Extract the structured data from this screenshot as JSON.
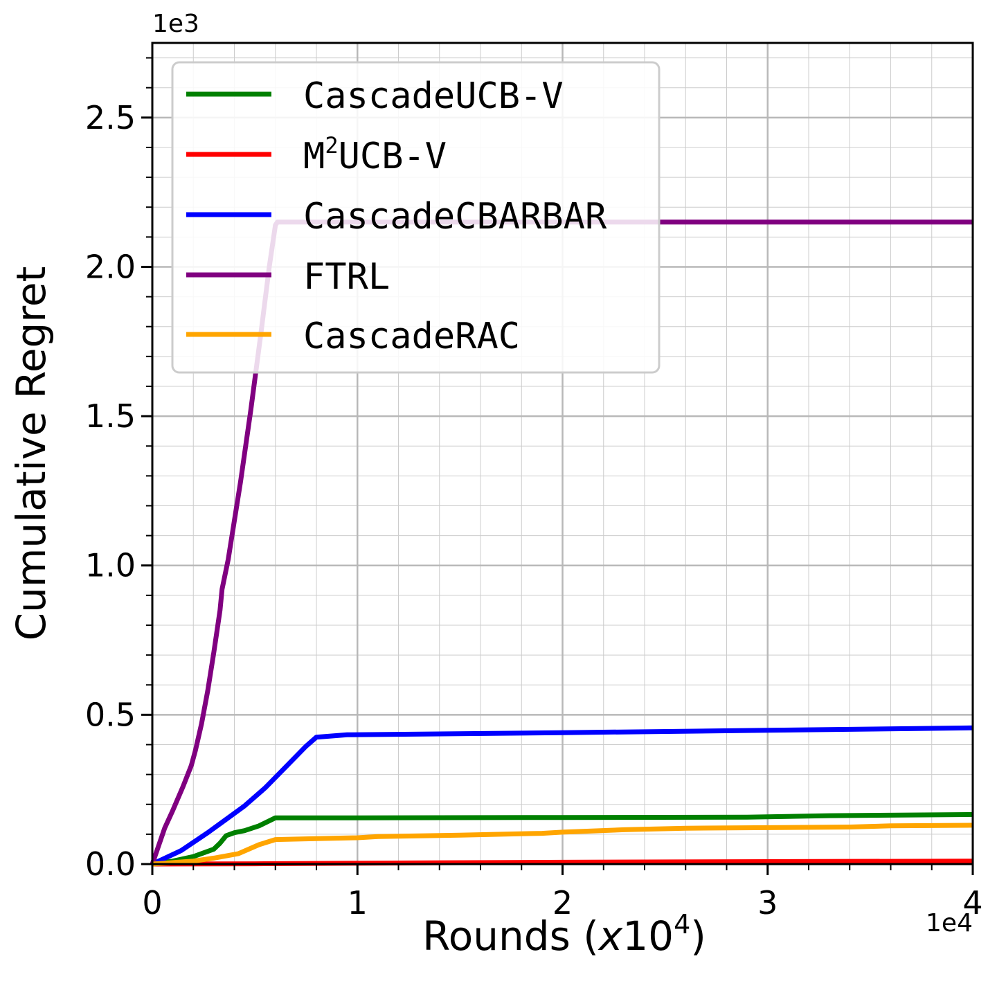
{
  "chart_data": {
    "type": "line",
    "xlabel": {
      "prefix": "Rounds (",
      "var": "x",
      "base": "10",
      "exp": "4",
      "suffix": ")"
    },
    "ylabel": "Cumulative Regret",
    "x_offset_label": "1e4",
    "y_offset_label": "1e3",
    "xlim": [
      0,
      40000
    ],
    "ylim": [
      0,
      2750
    ],
    "x_ticks": [
      {
        "value": 0,
        "label": "0"
      },
      {
        "value": 10000,
        "label": "1"
      },
      {
        "value": 20000,
        "label": "2"
      },
      {
        "value": 30000,
        "label": "3"
      },
      {
        "value": 40000,
        "label": "4"
      }
    ],
    "y_ticks": [
      {
        "value": 0,
        "label": "0.0"
      },
      {
        "value": 500,
        "label": "0.5"
      },
      {
        "value": 1000,
        "label": "1.0"
      },
      {
        "value": 1500,
        "label": "1.5"
      },
      {
        "value": 2000,
        "label": "2.0"
      },
      {
        "value": 2500,
        "label": "2.5"
      }
    ],
    "grid": true,
    "legend_position": "top-left",
    "series": [
      {
        "key": "cascadeucbv",
        "name": "CascadeUCB-V",
        "color": "#008000",
        "points": [
          [
            0,
            0
          ],
          [
            1000,
            10
          ],
          [
            2000,
            25
          ],
          [
            3000,
            50
          ],
          [
            3300,
            70
          ],
          [
            3600,
            95
          ],
          [
            4000,
            105
          ],
          [
            4500,
            112
          ],
          [
            5200,
            128
          ],
          [
            6000,
            155
          ],
          [
            10000,
            155
          ],
          [
            20000,
            156
          ],
          [
            29000,
            157
          ],
          [
            33000,
            162
          ],
          [
            40000,
            166
          ]
        ]
      },
      {
        "key": "m2ucbv",
        "name_main": "M",
        "name_sup": "2",
        "name_rest": "UCB-V",
        "color": "#ff0000",
        "points": [
          [
            0,
            0
          ],
          [
            5000,
            1
          ],
          [
            10000,
            3
          ],
          [
            20000,
            6
          ],
          [
            30000,
            8
          ],
          [
            40000,
            10
          ]
        ]
      },
      {
        "key": "cascadecbarbar",
        "name": "CascadeCBARBAR",
        "color": "#0000ff",
        "points": [
          [
            0,
            0
          ],
          [
            1400,
            45
          ],
          [
            2700,
            105
          ],
          [
            3500,
            145
          ],
          [
            4500,
            195
          ],
          [
            5500,
            255
          ],
          [
            6500,
            325
          ],
          [
            7500,
            395
          ],
          [
            8000,
            425
          ],
          [
            9500,
            433
          ],
          [
            20000,
            440
          ],
          [
            30000,
            448
          ],
          [
            40000,
            456
          ]
        ]
      },
      {
        "key": "ftrl",
        "name": "FTRL",
        "color": "#800080",
        "points": [
          [
            0,
            0
          ],
          [
            300,
            60
          ],
          [
            600,
            120
          ],
          [
            1000,
            180
          ],
          [
            1500,
            260
          ],
          [
            1900,
            330
          ],
          [
            2100,
            380
          ],
          [
            2400,
            470
          ],
          [
            2700,
            580
          ],
          [
            3000,
            710
          ],
          [
            3300,
            850
          ],
          [
            3400,
            920
          ],
          [
            3700,
            1020
          ],
          [
            4300,
            1280
          ],
          [
            4800,
            1520
          ],
          [
            5300,
            1780
          ],
          [
            5700,
            2000
          ],
          [
            6000,
            2140
          ],
          [
            6100,
            2150
          ],
          [
            40000,
            2150
          ]
        ]
      },
      {
        "key": "cascaderac",
        "name": "CascadeRAC",
        "color": "#ffa500",
        "points": [
          [
            0,
            0
          ],
          [
            2000,
            10
          ],
          [
            3000,
            20
          ],
          [
            4200,
            35
          ],
          [
            5200,
            65
          ],
          [
            6000,
            82
          ],
          [
            8000,
            85
          ],
          [
            10000,
            88
          ],
          [
            11000,
            92
          ],
          [
            15000,
            97
          ],
          [
            19000,
            103
          ],
          [
            20000,
            107
          ],
          [
            23000,
            115
          ],
          [
            26000,
            120
          ],
          [
            30000,
            122
          ],
          [
            34000,
            124
          ],
          [
            36000,
            128
          ],
          [
            40000,
            130
          ]
        ]
      }
    ]
  }
}
